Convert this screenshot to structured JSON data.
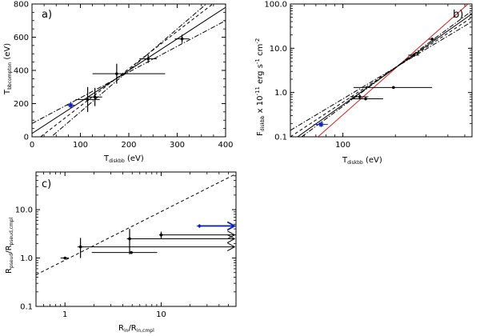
{
  "chart_data": [
    {
      "type": "scatter",
      "panel_label": "a)",
      "xscale": "linear",
      "yscale": "linear",
      "xlim": [
        0,
        400
      ],
      "ylim": [
        0,
        800
      ],
      "xticks": [
        "0",
        "100",
        "200",
        "300",
        "400"
      ],
      "yticks": [
        "0",
        "200",
        "400",
        "600",
        "800"
      ],
      "xlabel_main": "T",
      "xlabel_sub": "diskbb",
      "xlabel_tail": " (eV)",
      "ylabel_main": "T",
      "ylabel_sub": "bbcompton",
      "ylabel_tail": " (eV)",
      "points": [
        {
          "x": 80,
          "y": 190,
          "xerr": [
            8,
            8
          ],
          "yerr": [
            20,
            20
          ],
          "color": "#1020c0",
          "star": true
        },
        {
          "x": 115,
          "y": 225,
          "xerr": [
            25,
            25
          ],
          "yerr": [
            75,
            75
          ]
        },
        {
          "x": 130,
          "y": 240,
          "xerr": [
            15,
            15
          ],
          "yerr": [
            55,
            55
          ]
        },
        {
          "x": 175,
          "y": 380,
          "xerr": [
            50,
            100
          ],
          "yerr": [
            60,
            60
          ]
        },
        {
          "x": 240,
          "y": 470,
          "xerr": [
            18,
            18
          ],
          "yerr": [
            25,
            25
          ]
        },
        {
          "x": 310,
          "y": 590,
          "xerr": [
            15,
            15
          ],
          "yerr": [
            25,
            25
          ]
        }
      ],
      "lines": [
        {
          "style": "solid",
          "x": [
            0,
            400
          ],
          "y": [
            20,
            780
          ]
        },
        {
          "style": "dashed",
          "x": [
            0,
            400
          ],
          "y": [
            -40,
            860
          ]
        },
        {
          "style": "dashdot",
          "x": [
            0,
            400
          ],
          "y": [
            80,
            700
          ]
        },
        {
          "style": "dashdot",
          "x": [
            0,
            400
          ],
          "y": [
            -100,
            900
          ]
        }
      ]
    },
    {
      "type": "scatter",
      "panel_label": "b)",
      "xscale": "log",
      "yscale": "log",
      "xlim": [
        50,
        550
      ],
      "ylim": [
        0.1,
        100
      ],
      "xticks": [
        "100"
      ],
      "xtick_values": [
        100
      ],
      "yticks": [
        "0.1",
        "1.0",
        "10.0",
        "100.0"
      ],
      "ytick_values": [
        0.1,
        1,
        10,
        100
      ],
      "xlabel_main": "T",
      "xlabel_sub": "diskbb",
      "xlabel_tail": " (eV)",
      "ylabel_main": "F",
      "ylabel_sub": "diskbb",
      "ylabel_tail": " x 10",
      "ylabel_exp": "-11",
      "ylabel_units": " erg s",
      "ylabel_units_exp": "-1",
      "ylabel_units2": " cm",
      "ylabel_units2_exp": "-2",
      "points": [
        {
          "x": 75,
          "y": 0.19,
          "xerr": [
            7,
            7
          ],
          "yerr": [
            0.02,
            0.02
          ],
          "color": "#1020c0",
          "star": true
        },
        {
          "x": 125,
          "y": 0.8,
          "xerr": [
            15,
            15
          ],
          "yerr": [
            0.1,
            0.1
          ]
        },
        {
          "x": 135,
          "y": 0.72,
          "xerr": [
            25,
            35
          ],
          "yerr": [
            0.05,
            0.05
          ]
        },
        {
          "x": 195,
          "y": 1.3,
          "xerr": [
            80,
            130
          ],
          "yerr": [
            0.05,
            0.05
          ]
        },
        {
          "x": 255,
          "y": 7.0,
          "xerr": [
            18,
            18
          ],
          "yerr": [
            0.6,
            0.6
          ]
        },
        {
          "x": 325,
          "y": 16.0,
          "xerr": [
            15,
            15
          ],
          "yerr": [
            1.5,
            1.5
          ]
        }
      ],
      "lines": [
        {
          "style": "solid",
          "color": "#d02020",
          "x": [
            72,
            550
          ],
          "y": [
            0.1,
            120
          ]
        },
        {
          "style": "solid",
          "x": [
            55,
            550
          ],
          "y": [
            0.1,
            60
          ]
        },
        {
          "style": "dashed",
          "x": [
            50,
            550
          ],
          "y": [
            0.1,
            50
          ]
        },
        {
          "style": "dashdot",
          "x": [
            50,
            550
          ],
          "y": [
            0.14,
            40
          ]
        },
        {
          "style": "dashdot",
          "x": [
            58,
            550
          ],
          "y": [
            0.1,
            70
          ]
        }
      ]
    },
    {
      "type": "scatter",
      "panel_label": "c)",
      "xscale": "log",
      "yscale": "log",
      "xlim": [
        0.5,
        60
      ],
      "ylim": [
        0.1,
        60
      ],
      "xticks": [
        "1",
        "10"
      ],
      "xtick_values": [
        1,
        10
      ],
      "yticks": [
        "0.1",
        "1.0",
        "10.0"
      ],
      "ytick_values": [
        0.1,
        1,
        10
      ],
      "xlabel_main": "R",
      "xlabel_sub": "in",
      "xlabel_mid": "/R",
      "xlabel_sub2": "in,cmpl",
      "ylabel_main": "R",
      "ylabel_sub": "pseud",
      "ylabel_mid": "/R",
      "ylabel_sub2": "pseud,cmpl",
      "points": [
        {
          "x": 1.0,
          "y": 1.0,
          "xerr": [
            0.1,
            0.1
          ],
          "yerr": [
            0,
            0
          ]
        },
        {
          "x": 1.45,
          "y": 1.7,
          "xerr": [
            0.1,
            0.1
          ],
          "yerr": [
            0.7,
            0.9
          ],
          "arrow_to": 58
        },
        {
          "x": 4.7,
          "y": 2.5,
          "xerr": [
            0.3,
            0.3
          ],
          "yerr": [
            1.3,
            1.5
          ],
          "arrow_to": 58
        },
        {
          "x": 4.9,
          "y": 1.3,
          "xerr": [
            3.0,
            4.2
          ],
          "yerr": [
            0,
            0
          ]
        },
        {
          "x": 10.0,
          "y": 3.0,
          "xerr": [
            0.5,
            0.5
          ],
          "yerr": [
            0.5,
            0.5
          ],
          "arrow_to": 58
        },
        {
          "x": 25.0,
          "y": 4.6,
          "xerr": [
            1.5,
            1.5
          ],
          "yerr": [
            0.4,
            0.4
          ],
          "color": "#1020c0",
          "arrow_to": 58
        }
      ],
      "lines": [
        {
          "style": "dashed",
          "x": [
            0.5,
            60
          ],
          "y": [
            0.45,
            55
          ]
        }
      ]
    }
  ]
}
